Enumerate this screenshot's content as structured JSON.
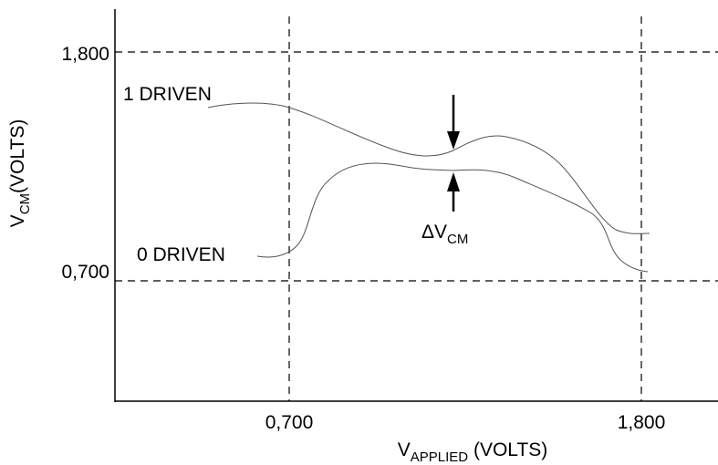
{
  "y_axis": {
    "title": "V",
    "title_sub": "CM",
    "title_rest": "(VOLTS)",
    "ticks": [
      "1,800",
      "0,700"
    ]
  },
  "x_axis": {
    "title": "V",
    "title_sub": "APPLIED",
    "title_rest": " (VOLTS)",
    "ticks": [
      "0,700",
      "1,800"
    ]
  },
  "labels": {
    "one_driven": "1 DRIVEN",
    "zero_driven": "0 DRIVEN",
    "delta": "ΔV",
    "delta_sub": "CM"
  }
}
